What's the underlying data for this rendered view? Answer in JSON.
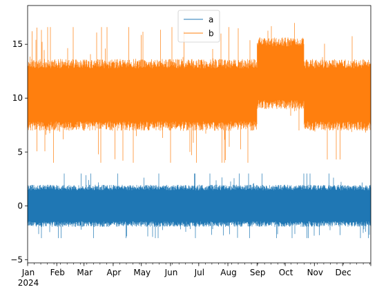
{
  "chart_data": {
    "type": "line",
    "title": "",
    "xlabel": "",
    "ylabel": "",
    "x_range": [
      "2024-01-01",
      "2024-12-31"
    ],
    "ylim": [
      -5.3,
      18.6
    ],
    "grid": false,
    "legend": {
      "position": "upper-center"
    },
    "x_tick_labels": [
      "Jan",
      "Feb",
      "Mar",
      "Apr",
      "May",
      "Jun",
      "Jul",
      "Aug",
      "Sep",
      "Oct",
      "Nov",
      "Dec"
    ],
    "x_ticks": [
      "2024-01-01",
      "2024-02-01",
      "2024-03-01",
      "2024-04-01",
      "2024-05-01",
      "2024-06-01",
      "2024-07-01",
      "2024-08-01",
      "2024-09-01",
      "2024-10-01",
      "2024-11-01",
      "2024-12-01"
    ],
    "x_year_label": "2024",
    "y_ticks": [
      -5,
      0,
      5,
      10,
      15
    ],
    "y_tick_labels": [
      "−5",
      "0",
      "5",
      "10",
      "15"
    ],
    "series": [
      {
        "name": "a",
        "color": "#1f77b4",
        "typical_band": [
          -1.6,
          1.6
        ],
        "extremes": [
          -4.1,
          3.2
        ],
        "segments": [
          {
            "start": "2024-01-01",
            "end": "2024-12-31",
            "center": 0,
            "spread": 1.7,
            "peak": 3.0
          }
        ]
      },
      {
        "name": "b",
        "color": "#ff7f0e",
        "typical_band": [
          7.3,
          13.2
        ],
        "extremes": [
          2.8,
          17.5
        ],
        "segments": [
          {
            "start": "2024-01-01",
            "end": "2024-08-31",
            "center": 10.3,
            "spread": 2.9,
            "peak": 6.3
          },
          {
            "start": "2024-09-01",
            "end": "2024-10-20",
            "center": 12.3,
            "spread": 2.9,
            "peak": 5.3
          },
          {
            "start": "2024-10-21",
            "end": "2024-12-31",
            "center": 10.3,
            "spread": 2.9,
            "peak": 6.0
          }
        ]
      }
    ]
  }
}
